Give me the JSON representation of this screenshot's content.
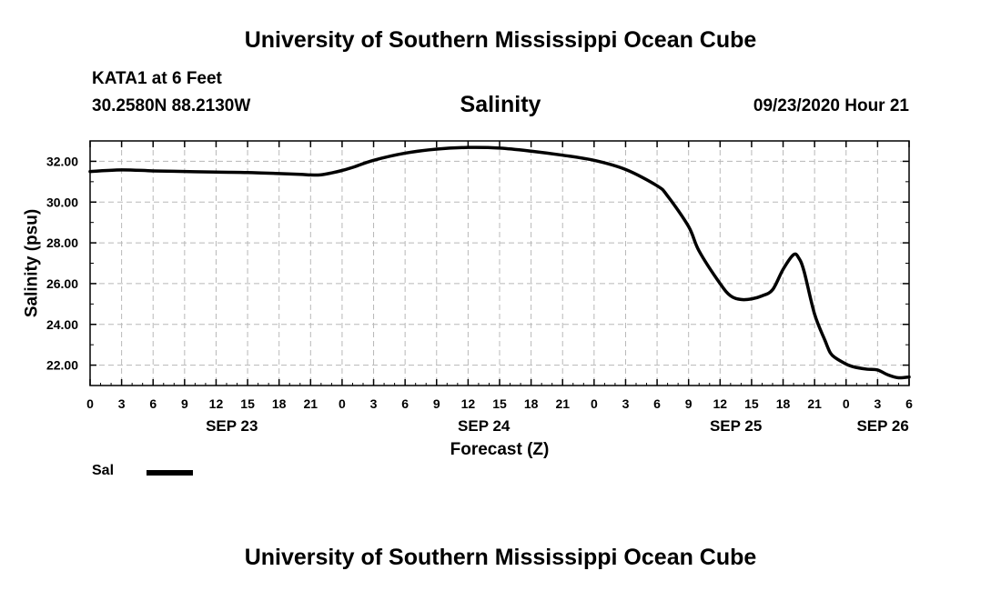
{
  "header": {
    "title": "University of Southern Mississippi Ocean Cube",
    "station": "KATA1 at 6 Feet",
    "coordinates": "30.2580N 88.2130W",
    "run_time": "09/23/2020 Hour 21"
  },
  "footer": {
    "title": "University of Southern Mississippi Ocean Cube"
  },
  "chart_data": {
    "type": "line",
    "title": "Salinity",
    "xlabel": "Forecast (Z)",
    "ylabel": "Salinity (psu)",
    "x_units": "hours from SEP 23 00Z",
    "xlim": [
      0,
      78
    ],
    "ylim": [
      21.0,
      33.0
    ],
    "grid": true,
    "y_ticks": [
      22,
      24,
      26,
      28,
      30,
      32
    ],
    "y_tick_labels": [
      "22.00",
      "24.00",
      "26.00",
      "28.00",
      "30.00",
      "32.00"
    ],
    "x_ticks": [
      0,
      3,
      6,
      9,
      12,
      15,
      18,
      21,
      24,
      27,
      30,
      33,
      36,
      39,
      42,
      45,
      48,
      51,
      54,
      57,
      60,
      63,
      66,
      69,
      72,
      75,
      78
    ],
    "x_tick_labels": [
      "0",
      "3",
      "6",
      "9",
      "12",
      "15",
      "18",
      "21",
      "0",
      "3",
      "6",
      "9",
      "12",
      "15",
      "18",
      "21",
      "0",
      "3",
      "6",
      "9",
      "12",
      "15",
      "18",
      "21",
      "0",
      "3",
      "6"
    ],
    "date_labels": [
      {
        "x": 13.5,
        "label": "SEP 23"
      },
      {
        "x": 37.5,
        "label": "SEP 24"
      },
      {
        "x": 61.5,
        "label": "SEP 25"
      },
      {
        "x": 75.5,
        "label": "SEP 26"
      }
    ],
    "legend": {
      "position": "bottom-left",
      "entries": [
        "Sal"
      ]
    },
    "series": [
      {
        "name": "Sal",
        "color": "#000000",
        "x": [
          0,
          3,
          6,
          9,
          12,
          15,
          18,
          20,
          21,
          22,
          23,
          24,
          25,
          27,
          30,
          33,
          36,
          39,
          42,
          45,
          48,
          51,
          54,
          55,
          57,
          58,
          60,
          61,
          62,
          63,
          64,
          65,
          66,
          67,
          67.5,
          68,
          69,
          70,
          70.5,
          71,
          72,
          72.5,
          73,
          74,
          75,
          76,
          77,
          78
        ],
        "y": [
          31.5,
          31.58,
          31.53,
          31.5,
          31.47,
          31.45,
          31.4,
          31.36,
          31.33,
          31.34,
          31.43,
          31.55,
          31.7,
          32.05,
          32.4,
          32.6,
          32.68,
          32.65,
          32.5,
          32.3,
          32.05,
          31.6,
          30.8,
          30.3,
          28.8,
          27.6,
          26.0,
          25.4,
          25.22,
          25.25,
          25.4,
          25.7,
          26.7,
          27.42,
          27.25,
          26.6,
          24.5,
          23.2,
          22.6,
          22.35,
          22.05,
          21.95,
          21.88,
          21.8,
          21.76,
          21.52,
          21.38,
          21.42
        ]
      }
    ]
  }
}
